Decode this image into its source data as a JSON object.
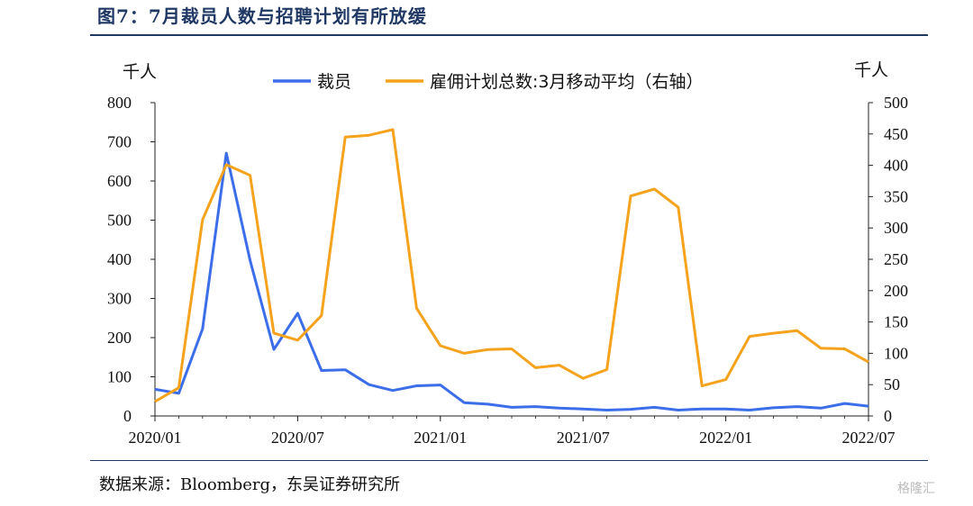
{
  "title": "图7：7月裁员人数与招聘计划有所放缓",
  "source": "数据来源：Bloomberg，东吴证券研究所",
  "watermark": "格隆汇",
  "chart_data": {
    "type": "line",
    "left_unit": "千人",
    "right_unit": "千人",
    "ylim_left": [
      0,
      800
    ],
    "ylim_right": [
      0,
      500
    ],
    "left_ticks": [
      0,
      100,
      200,
      300,
      400,
      500,
      600,
      700,
      800
    ],
    "right_ticks": [
      0,
      50,
      100,
      150,
      200,
      250,
      300,
      350,
      400,
      450,
      500
    ],
    "x_tick_labels": [
      "2020/01",
      "2020/07",
      "2021/01",
      "2021/07",
      "2022/01",
      "2022/07"
    ],
    "x": [
      "2020/01",
      "2020/02",
      "2020/03",
      "2020/04",
      "2020/05",
      "2020/06",
      "2020/07",
      "2020/08",
      "2020/09",
      "2020/10",
      "2020/11",
      "2020/12",
      "2021/01",
      "2021/02",
      "2021/03",
      "2021/04",
      "2021/05",
      "2021/06",
      "2021/07",
      "2021/08",
      "2021/09",
      "2021/10",
      "2021/11",
      "2021/12",
      "2022/01",
      "2022/02",
      "2022/03",
      "2022/04",
      "2022/05",
      "2022/06",
      "2022/07"
    ],
    "legend_position": "top",
    "grid": false,
    "series": [
      {
        "name": "裁员",
        "axis": "left",
        "color": "#3b6ee8",
        "values": [
          68,
          58,
          222,
          671,
          397,
          170,
          262,
          116,
          118,
          80,
          65,
          77,
          79,
          34,
          30,
          22,
          24,
          20,
          18,
          15,
          17,
          22,
          15,
          18,
          18,
          15,
          21,
          24,
          20,
          32,
          25
        ]
      },
      {
        "name": "雇佣计划总数:3月移动平均（右轴）",
        "axis": "right",
        "color": "#f5a21d",
        "values": [
          23,
          45,
          313,
          401,
          384,
          132,
          121,
          160,
          445,
          448,
          457,
          172,
          112,
          100,
          106,
          107,
          77,
          81,
          60,
          74,
          351,
          362,
          333,
          48,
          58,
          127,
          132,
          136,
          108,
          107,
          86
        ]
      }
    ]
  }
}
